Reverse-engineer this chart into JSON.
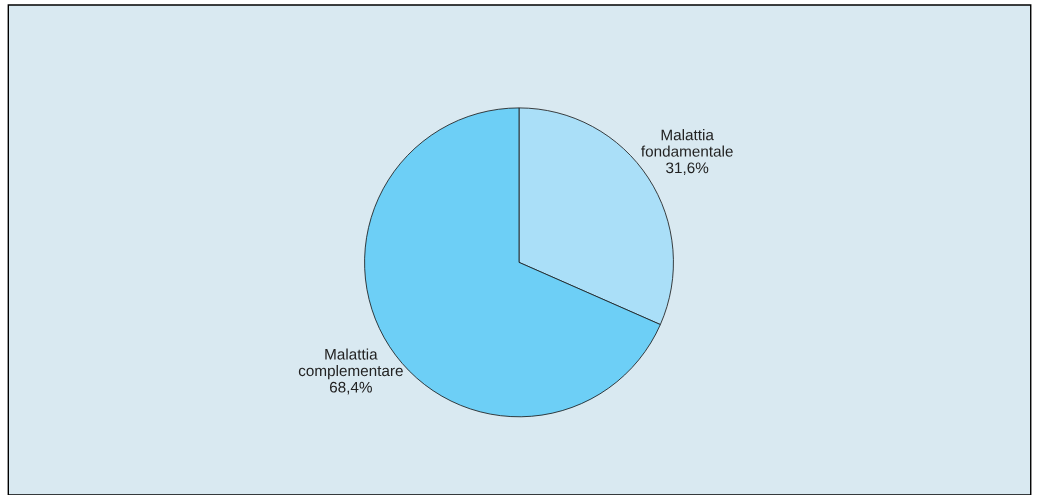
{
  "chart_data": {
    "type": "pie",
    "categories": [
      "Malattia fondamentale",
      "Malattia complementare"
    ],
    "values": [
      31.6,
      68.4
    ],
    "value_labels": [
      "31,6%",
      "68,4%"
    ],
    "colors": [
      "#aadff8",
      "#6dcff6"
    ],
    "legend": false
  }
}
